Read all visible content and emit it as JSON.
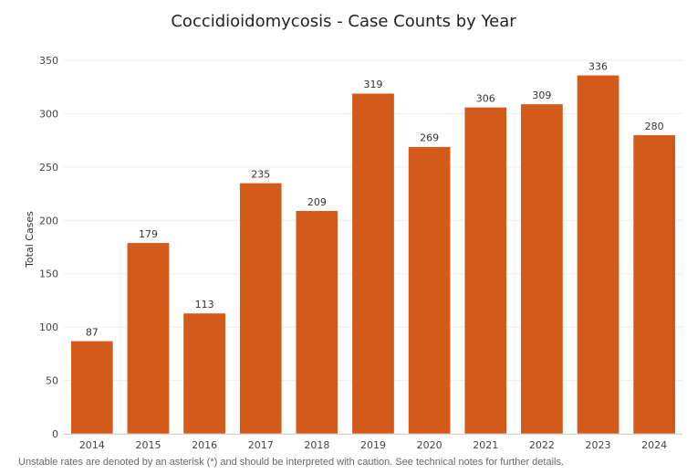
{
  "chart_data": {
    "type": "bar",
    "title": "Coccidioidomycosis - Case Counts by Year",
    "xlabel": "",
    "ylabel": "Total Cases",
    "categories": [
      "2014",
      "2015",
      "2016",
      "2017",
      "2018",
      "2019",
      "2020",
      "2021",
      "2022",
      "2023",
      "2024"
    ],
    "values": [
      87,
      179,
      113,
      235,
      209,
      319,
      269,
      306,
      309,
      336,
      280
    ],
    "ylim": [
      0,
      350
    ],
    "yticks": [
      0,
      50,
      100,
      150,
      200,
      250,
      300,
      350
    ],
    "grid": true,
    "bar_color": "#d45a1a",
    "data_labels": true
  },
  "footnote": "Unstable rates are denoted by an asterisk (*) and should be interpreted with caution. See technical notes for further details."
}
